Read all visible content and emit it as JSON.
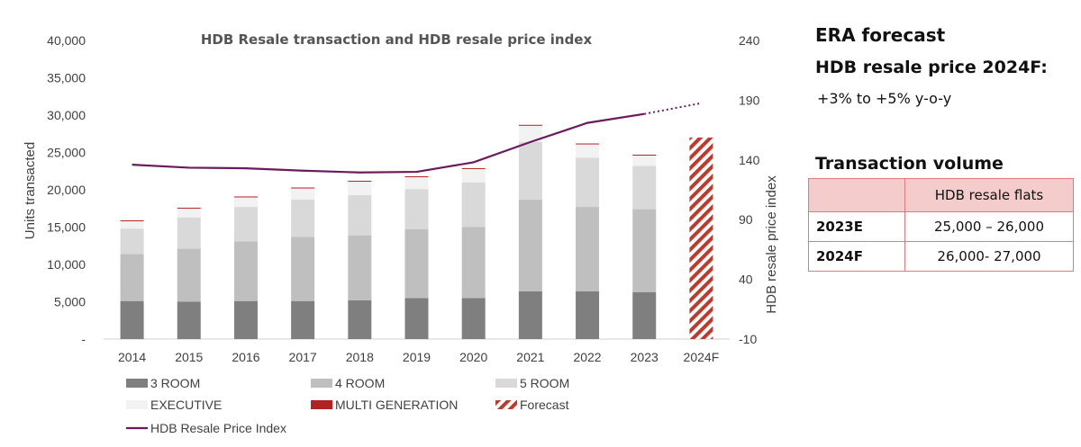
{
  "chart_data": {
    "type": "bar",
    "title": "HDB Resale transaction and HDB resale price index",
    "ylabel": "Units transacted",
    "y2label": "HDB resale price index",
    "categories": [
      "2014",
      "2015",
      "2016",
      "2017",
      "2018",
      "2019",
      "2020",
      "2021",
      "2022",
      "2023",
      "2024F"
    ],
    "ylim": [
      0,
      40000
    ],
    "y2lim": [
      -10,
      240
    ],
    "yticks": [
      "-",
      "5,000",
      "10,000",
      "15,000",
      "20,000",
      "25,000",
      "30,000",
      "35,000",
      "40,000"
    ],
    "y2ticks": [
      "-10",
      "40",
      "90",
      "140",
      "190",
      "240"
    ],
    "stacked": true,
    "series": [
      {
        "name": "3 ROOM",
        "color": "#7f7f7f",
        "values": [
          5100,
          5000,
          5100,
          5100,
          5200,
          5500,
          5500,
          6400,
          6400,
          6300,
          null
        ]
      },
      {
        "name": "4 ROOM",
        "color": "#bfbfbf",
        "values": [
          6300,
          7100,
          8000,
          8600,
          8700,
          9200,
          9500,
          12300,
          11300,
          11100,
          null
        ]
      },
      {
        "name": "5 ROOM",
        "color": "#d9d9d9",
        "values": [
          3400,
          4200,
          4600,
          5000,
          5400,
          5400,
          6000,
          7700,
          6600,
          5800,
          null
        ]
      },
      {
        "name": "EXECUTIVE",
        "color": "#f2f2f2",
        "values": [
          1000,
          1200,
          1300,
          1500,
          1800,
          1600,
          1800,
          2200,
          1800,
          1400,
          null
        ]
      },
      {
        "name": "MULTI GENERATION",
        "color": "#b22222",
        "values": [
          100,
          100,
          100,
          100,
          100,
          100,
          100,
          100,
          100,
          100,
          null
        ]
      }
    ],
    "forecast": {
      "name": "Forecast",
      "category": "2024F",
      "value": 27000,
      "color": "#c0392b"
    },
    "line": {
      "name": "HDB Resale Price Index",
      "color": "#6b1a5e",
      "axis": "secondary",
      "values": [
        136,
        133.5,
        133,
        131,
        129.5,
        130,
        138,
        155,
        171,
        178.5,
        null
      ],
      "forecast_values": [
        null,
        null,
        null,
        null,
        null,
        null,
        null,
        null,
        null,
        178.5,
        187.5
      ]
    },
    "legend": [
      "3 ROOM",
      "4 ROOM",
      "5 ROOM",
      "EXECUTIVE",
      "MULTI GENERATION",
      "Forecast",
      "HDB Resale Price Index"
    ],
    "legend_position": "bottom",
    "grid": false
  },
  "panel": {
    "era_title": "ERA forecast",
    "era_subtitle": "HDB resale price 2024F:",
    "era_range": "+3% to +5% y-o-y",
    "tv_title": "Transaction volume",
    "table_header": "HDB resale flats",
    "rows": [
      {
        "label": "2023E",
        "value": "25,000 – 26,000"
      },
      {
        "label": "2024F",
        "value": "26,000- 27,000"
      }
    ]
  }
}
